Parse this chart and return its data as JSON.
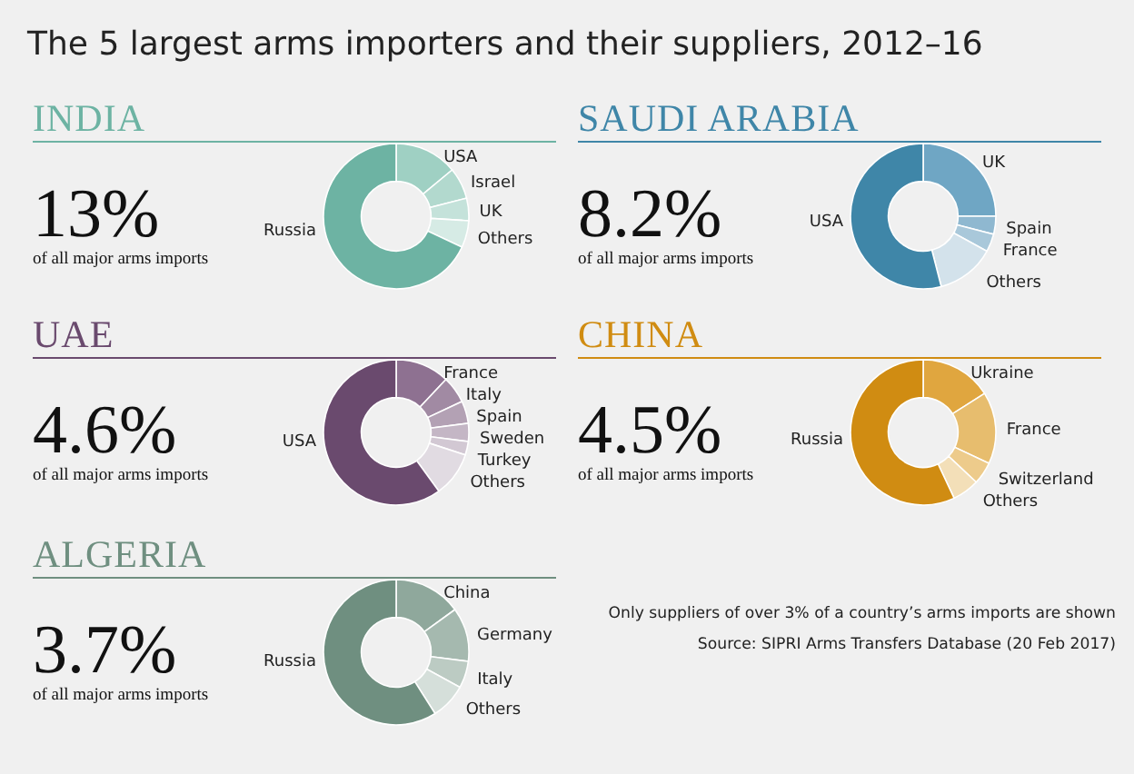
{
  "chart_data": [
    {
      "type": "other",
      "title": "The 5 largest arms importers and their suppliers, 2012–16",
      "annotations": [
        "Only suppliers of over 3% of a country’s arms imports are shown",
        "Source: SIPRI Arms Transfers Database (20 Feb 2017)"
      ]
    },
    {
      "type": "donut",
      "title": "INDIA",
      "annotations": [
        "13%",
        "of all major arms imports"
      ],
      "categories": [
        "USA",
        "Israel",
        "UK",
        "Others",
        "Russia"
      ],
      "values": [
        14,
        7,
        5,
        6,
        68
      ],
      "colors": [
        "#9fd0c3",
        "#b2d9ce",
        "#c4e2da",
        "#d6ebe5",
        "#6db3a3"
      ]
    },
    {
      "type": "donut",
      "title": "SAUDI ARABIA",
      "annotations": [
        "8.2%",
        "of all major arms imports"
      ],
      "categories": [
        "UK",
        "Spain",
        "France",
        "Others",
        "USA"
      ],
      "values": [
        25,
        4,
        4,
        13,
        54
      ],
      "colors": [
        "#6fa6c4",
        "#8fb8d0",
        "#a9c8da",
        "#d3e2eb",
        "#3f86a8"
      ]
    },
    {
      "type": "donut",
      "title": "UAE",
      "annotations": [
        "4.6%",
        "of all major arms imports"
      ],
      "categories": [
        "France",
        "Italy",
        "Spain",
        "Sweden",
        "Turkey",
        "Others",
        "USA"
      ],
      "values": [
        12,
        6,
        5,
        4,
        3,
        10,
        60
      ],
      "colors": [
        "#8e7191",
        "#a18aa3",
        "#b3a1b4",
        "#c4b6c5",
        "#d2c8d3",
        "#e1dbe2",
        "#6a4a6e"
      ]
    },
    {
      "type": "donut",
      "title": "CHINA",
      "annotations": [
        "4.5%",
        "of all major arms imports"
      ],
      "categories": [
        "Ukraine",
        "France",
        "Switzerland",
        "Others",
        "Russia"
      ],
      "values": [
        16,
        16,
        5,
        6,
        57
      ],
      "colors": [
        "#e0a63f",
        "#e7bd6e",
        "#edcb8b",
        "#f3dfb8",
        "#d08c12"
      ]
    },
    {
      "type": "donut",
      "title": "ALGERIA",
      "annotations": [
        "3.7%",
        "of all major arms imports"
      ],
      "categories": [
        "China",
        "Germany",
        "Italy",
        "Others",
        "Russia"
      ],
      "values": [
        15,
        12,
        6,
        8,
        59
      ],
      "colors": [
        "#8fa89c",
        "#a5b9af",
        "#bccbc3",
        "#d5dfda",
        "#6f8f80"
      ]
    }
  ]
}
